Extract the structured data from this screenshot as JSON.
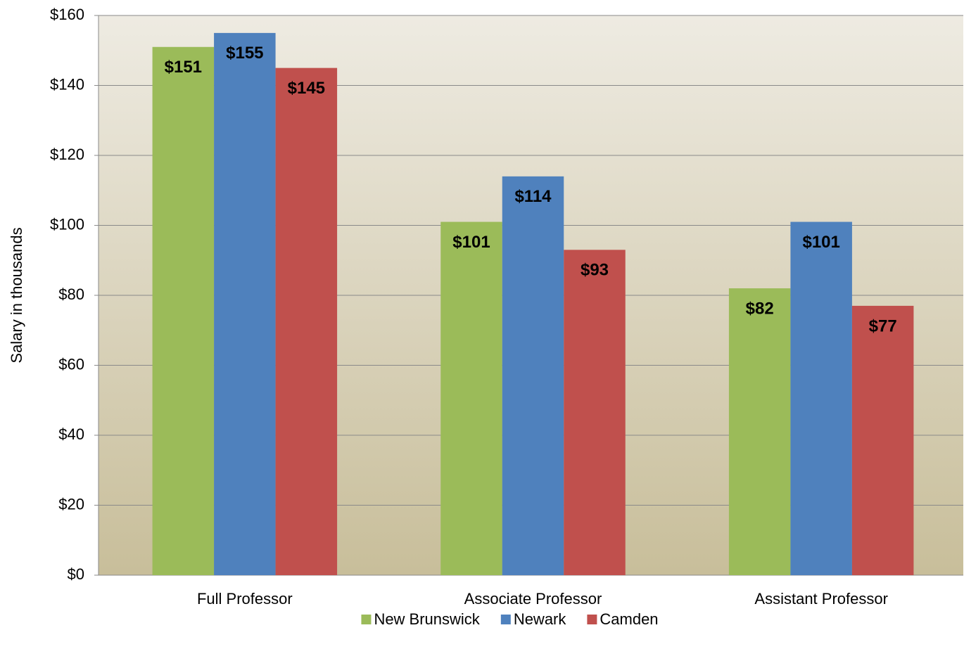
{
  "chart_data": {
    "type": "bar",
    "y_label": "Salary in thousands",
    "categories": [
      "Full Professor",
      "Associate Professor",
      "Assistant Professor"
    ],
    "series": [
      {
        "name": "New Brunswick",
        "color": "#9bbb59",
        "values": [
          151,
          101,
          82
        ],
        "value_labels": [
          "$151",
          "$101",
          "$82"
        ]
      },
      {
        "name": "Newark",
        "color": "#4f81bd",
        "values": [
          155,
          114,
          101
        ],
        "value_labels": [
          "$155",
          "$114",
          "$101"
        ]
      },
      {
        "name": "Camden",
        "color": "#c0504d",
        "values": [
          145,
          93,
          77
        ],
        "value_labels": [
          "$145",
          "$93",
          "$77"
        ]
      }
    ],
    "ylim": [
      0,
      160
    ],
    "yticks": [
      {
        "value": 0,
        "label": "$0"
      },
      {
        "value": 20,
        "label": "$20"
      },
      {
        "value": 40,
        "label": "$40"
      },
      {
        "value": 60,
        "label": "$60"
      },
      {
        "value": 80,
        "label": "$80"
      },
      {
        "value": 100,
        "label": "$100"
      },
      {
        "value": 120,
        "label": "$120"
      },
      {
        "value": 140,
        "label": "$140"
      },
      {
        "value": 160,
        "label": "$160"
      }
    ],
    "grid": true,
    "legend": "bottom"
  }
}
